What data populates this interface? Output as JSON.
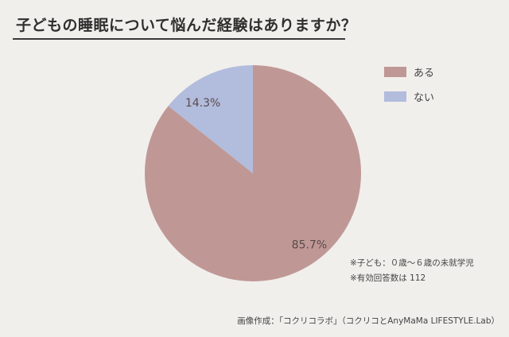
{
  "title": "子どもの睡眠について悩んだ経験はありますか？",
  "chart_data": {
    "type": "pie",
    "title": "子どもの睡眠について悩んだ経験はありますか？",
    "categories": [
      "ある",
      "ない"
    ],
    "values": [
      85.7,
      14.3
    ],
    "labels": [
      "85.7%",
      "14.3%"
    ],
    "colors": [
      "#bf9896",
      "#b2bcdd"
    ],
    "legend_position": "top-right"
  },
  "notes": [
    "※子ども：０歳～６歳の未就学児",
    "※有効回答数は 112"
  ],
  "credit": "画像作成：「コクリコラボ」（コクリコとAnyMaMa LIFESTYLE.Lab）",
  "colors": {
    "background": "#f1efec",
    "text": "#333333",
    "slice_text": "#5a4a4a"
  }
}
